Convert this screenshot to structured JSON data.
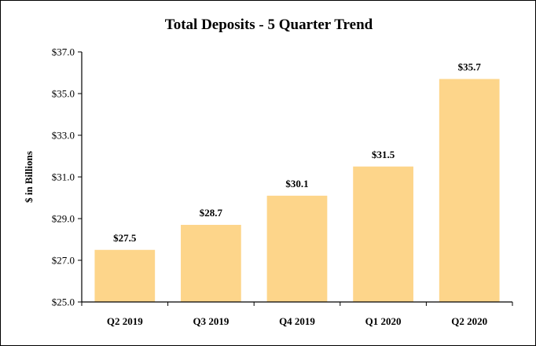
{
  "chart_data": {
    "type": "bar",
    "title": "Total Deposits - 5 Quarter Trend",
    "xlabel": "",
    "ylabel": "$ in Billions",
    "categories": [
      "Q2 2019",
      "Q3 2019",
      "Q4 2019",
      "Q1 2020",
      "Q2 2020"
    ],
    "values": [
      27.5,
      28.7,
      30.1,
      31.5,
      35.7
    ],
    "value_labels": [
      "$27.5",
      "$28.7",
      "$30.1",
      "$31.5",
      "$35.7"
    ],
    "ylim": [
      25.0,
      37.0
    ],
    "yticks": [
      25.0,
      27.0,
      29.0,
      31.0,
      33.0,
      35.0,
      37.0
    ],
    "ytick_labels": [
      "$25.0",
      "$27.0",
      "$29.0",
      "$31.0",
      "$33.0",
      "$35.0",
      "$37.0"
    ],
    "grid": false,
    "legend": "none",
    "bar_color": "#FDD58A"
  }
}
